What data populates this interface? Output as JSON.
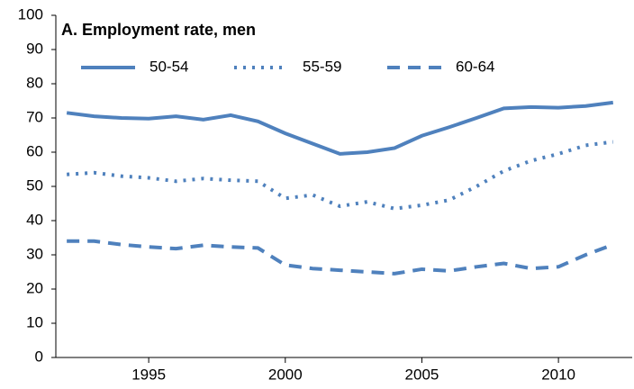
{
  "chart_data": {
    "type": "line",
    "title": "A. Employment rate, men",
    "x": [
      1992,
      1993,
      1994,
      1995,
      1996,
      1997,
      1998,
      1999,
      2000,
      2001,
      2002,
      2003,
      2004,
      2005,
      2006,
      2007,
      2008,
      2009,
      2010,
      2011,
      2012
    ],
    "series": [
      {
        "name": "50-54",
        "color": "#4f81bd",
        "style": "solid",
        "values": [
          71.5,
          70.5,
          70,
          69.8,
          70.5,
          69.5,
          70.8,
          69,
          65.5,
          62.5,
          59.5,
          60,
          61.2,
          64.8,
          67.3,
          70,
          72.8,
          73.2,
          73,
          73.5,
          74.5
        ]
      },
      {
        "name": "55-59",
        "color": "#4f81bd",
        "style": "dotted",
        "values": [
          53.5,
          54,
          53,
          52.5,
          51.5,
          52.3,
          51.8,
          51.5,
          46.5,
          47.5,
          44.2,
          45.5,
          43.5,
          44.5,
          46,
          50,
          54.5,
          57.5,
          59.5,
          62,
          63
        ]
      },
      {
        "name": "60-64",
        "color": "#4f81bd",
        "style": "dashed",
        "values": [
          34,
          34,
          33,
          32.3,
          31.8,
          32.8,
          32.3,
          32,
          27,
          26,
          25.5,
          25,
          24.5,
          25.8,
          25.3,
          26.5,
          27.5,
          26,
          26.5,
          30,
          33
        ]
      }
    ],
    "xlim": [
      1991.6,
      2012.7
    ],
    "xticks": [
      1995,
      2000,
      2005,
      2010
    ],
    "ylim": [
      0,
      100
    ],
    "yticks": [
      0,
      10,
      20,
      30,
      40,
      50,
      60,
      70,
      80,
      90,
      100
    ],
    "legend": "top"
  }
}
